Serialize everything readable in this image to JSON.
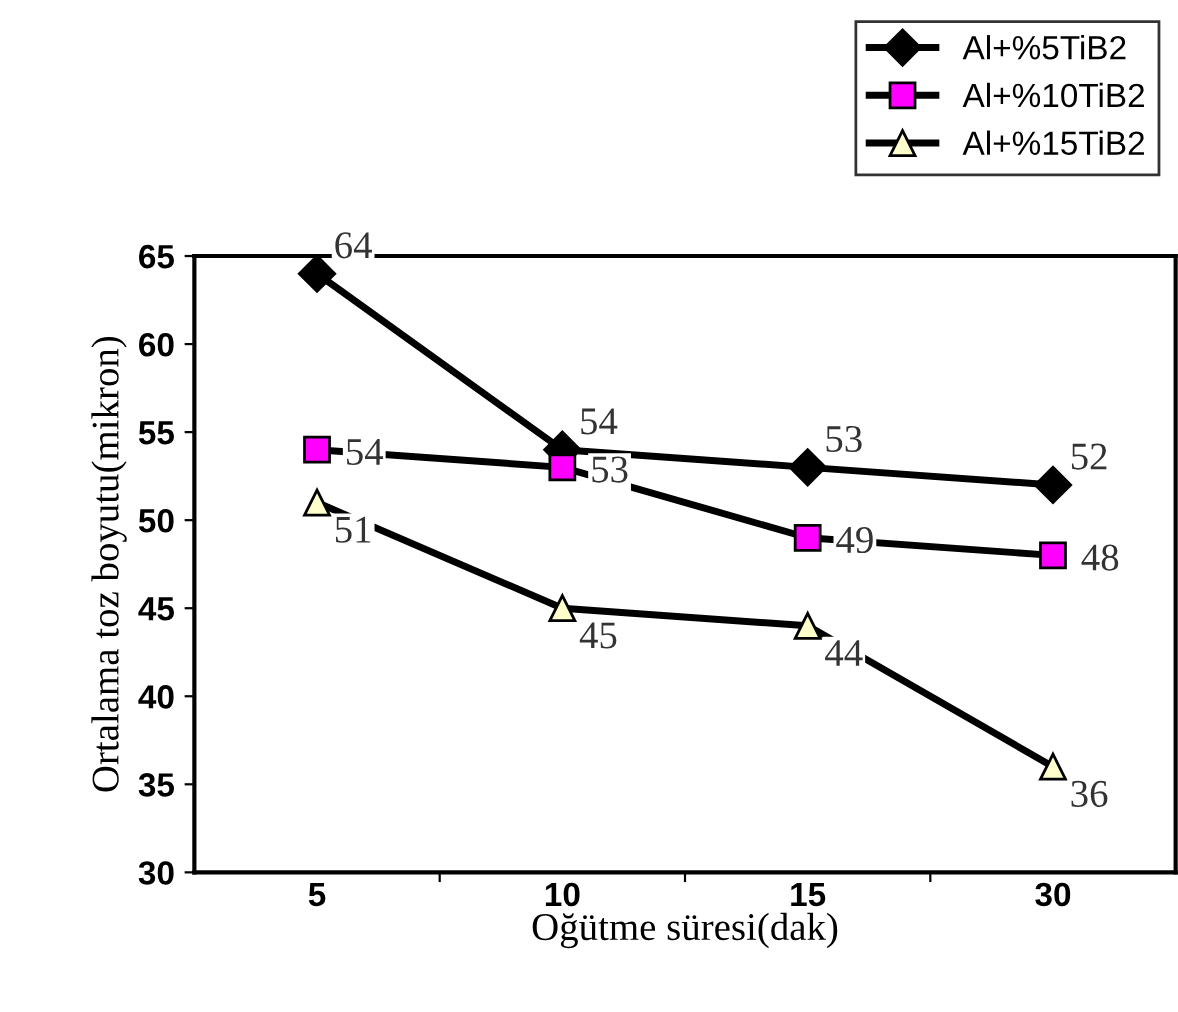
{
  "chart_data": {
    "type": "line",
    "xlabel": "Oğütme süresi(dak)",
    "ylabel": "Ortalama toz boyutu(mikron)",
    "categories": [
      "5",
      "10",
      "15",
      "30"
    ],
    "series": [
      {
        "name": "Al+%5TiB2",
        "color": "#000000",
        "marker": "diamond",
        "values": [
          64,
          54,
          53,
          52
        ]
      },
      {
        "name": "Al+%10TiB2",
        "color": "#ff00ff",
        "marker": "square",
        "values": [
          54,
          53,
          49,
          48
        ]
      },
      {
        "name": "Al+%15TiB2",
        "color": "#ffffcc",
        "marker": "triangle",
        "values": [
          51,
          45,
          44,
          36
        ]
      }
    ],
    "ylim": [
      30,
      65
    ],
    "yticks": [
      30,
      35,
      40,
      45,
      50,
      55,
      60,
      65
    ],
    "data_labels": true,
    "legend": "top right",
    "grid": false
  }
}
